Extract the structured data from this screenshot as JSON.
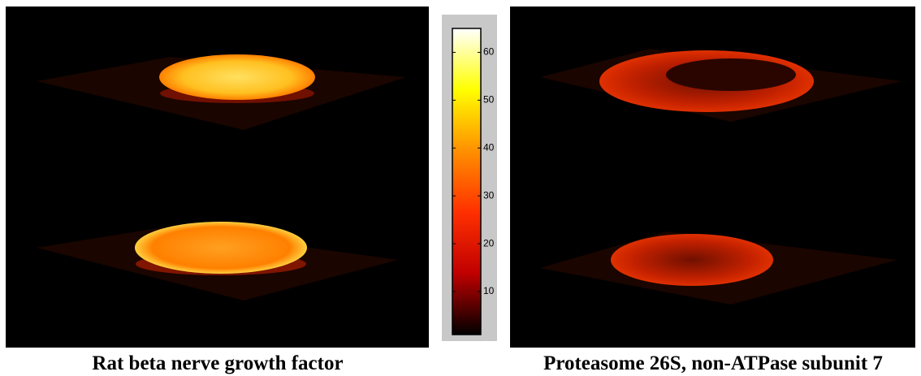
{
  "captions": {
    "left": "Rat beta nerve growth factor",
    "right": "Proteasome 26S, non-ATPase subunit 7"
  },
  "colorbar": {
    "lim": [
      1,
      65
    ],
    "ticks": [
      10,
      20,
      30,
      40,
      50,
      60
    ],
    "colormap": [
      "#000000",
      "#c00000",
      "#ff3000",
      "#ff9000",
      "#ffff00",
      "#ffffff"
    ]
  }
}
